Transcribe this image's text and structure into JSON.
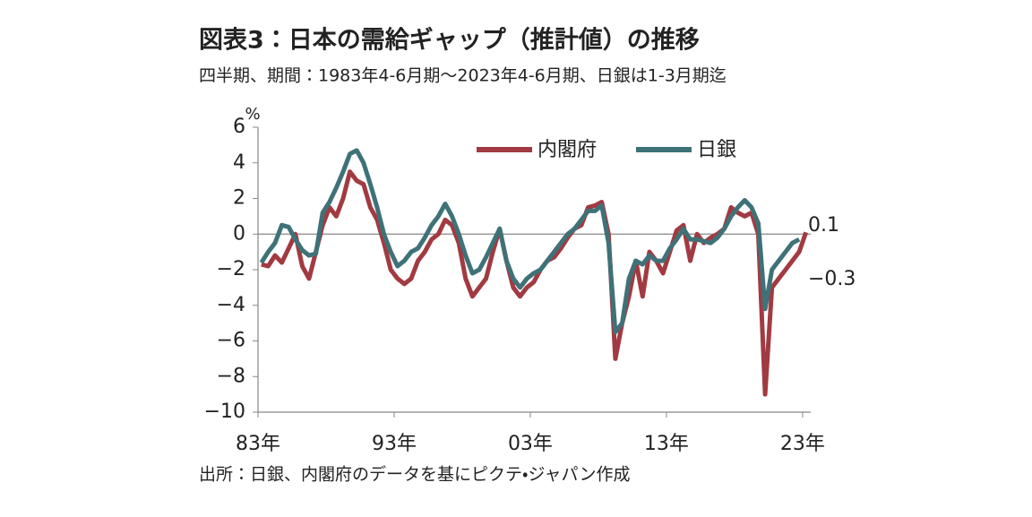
{
  "chart_data": {
    "type": "line",
    "title": "図表3：日本の需給ギャップ（推計値）の推移",
    "subtitle": "四半期、期間：1983年4-6月期～2023年4-6月期、日銀は1-3月期迄",
    "source": "出所：日銀、内閣府のデータを基にピクテ・ジャパン作成",
    "y_unit": "%",
    "x": [
      1983.25,
      1983.75,
      1984.25,
      1984.75,
      1985.25,
      1985.75,
      1986.25,
      1986.75,
      1987.25,
      1987.75,
      1988.25,
      1988.75,
      1989.25,
      1989.75,
      1990.25,
      1990.75,
      1991.25,
      1991.75,
      1992.25,
      1992.75,
      1993.25,
      1993.75,
      1994.25,
      1994.75,
      1995.25,
      1995.75,
      1996.25,
      1996.75,
      1997.25,
      1997.75,
      1998.25,
      1998.75,
      1999.25,
      1999.75,
      2000.25,
      2000.75,
      2001.25,
      2001.75,
      2002.25,
      2002.75,
      2003.25,
      2003.75,
      2004.25,
      2004.75,
      2005.25,
      2005.75,
      2006.25,
      2006.75,
      2007.25,
      2007.75,
      2008.25,
      2008.75,
      2009.25,
      2009.75,
      2010.25,
      2010.75,
      2011.25,
      2011.75,
      2012.25,
      2012.75,
      2013.25,
      2013.75,
      2014.25,
      2014.75,
      2015.25,
      2015.75,
      2016.25,
      2016.75,
      2017.25,
      2017.75,
      2018.25,
      2018.75,
      2019.25,
      2019.75,
      2020.25,
      2020.75,
      2021.25,
      2021.75,
      2022.25,
      2022.75,
      2023.25
    ],
    "series": [
      {
        "name": "内閣府",
        "color": "#a23a41",
        "values": [
          -1.7,
          -1.8,
          -1.2,
          -1.6,
          -0.8,
          0.0,
          -1.8,
          -2.5,
          -1.0,
          0.5,
          1.5,
          1.0,
          2.0,
          3.5,
          3.0,
          2.8,
          1.5,
          0.8,
          -0.5,
          -2.0,
          -2.5,
          -2.8,
          -2.5,
          -1.5,
          -1.0,
          -0.3,
          0.0,
          0.8,
          0.5,
          -0.5,
          -2.5,
          -3.5,
          -3.0,
          -2.5,
          -1.0,
          0.3,
          -1.5,
          -3.0,
          -3.5,
          -3.0,
          -2.7,
          -2.0,
          -1.5,
          -1.3,
          -0.8,
          -0.2,
          0.3,
          0.5,
          1.5,
          1.6,
          1.8,
          0.0,
          -7.0,
          -5.0,
          -3.5,
          -1.5,
          -3.5,
          -1.0,
          -1.5,
          -2.2,
          -1.0,
          0.2,
          0.5,
          -1.5,
          0.0,
          -0.5,
          -0.2,
          0.0,
          0.3,
          1.5,
          1.2,
          1.0,
          1.2,
          0.0,
          -9.0,
          -3.0,
          -2.5,
          -2.0,
          -1.5,
          -1.0,
          0.1
        ]
      },
      {
        "name": "日銀",
        "color": "#3e7278",
        "values": [
          -1.6,
          -1.0,
          -0.5,
          0.5,
          0.4,
          -0.3,
          -0.9,
          -1.2,
          -1.1,
          1.2,
          1.8,
          2.6,
          3.5,
          4.5,
          4.7,
          4.0,
          2.8,
          1.5,
          0.0,
          -1.0,
          -1.8,
          -1.5,
          -1.0,
          -0.8,
          -0.2,
          0.5,
          1.0,
          1.7,
          1.0,
          0.0,
          -1.2,
          -2.2,
          -2.0,
          -1.3,
          -0.5,
          0.3,
          -1.5,
          -2.5,
          -3.0,
          -2.5,
          -2.2,
          -2.0,
          -1.5,
          -1.0,
          -0.5,
          0.0,
          0.3,
          0.8,
          1.3,
          1.3,
          1.6,
          -0.5,
          -5.5,
          -5.0,
          -2.5,
          -1.5,
          -1.7,
          -1.2,
          -1.5,
          -1.5,
          -0.8,
          -0.3,
          0.3,
          -0.3,
          -0.3,
          -0.4,
          -0.5,
          -0.2,
          0.3,
          1.0,
          1.5,
          1.9,
          1.5,
          0.6,
          -4.2,
          -2.0,
          -1.5,
          -1.0,
          -0.5,
          -0.3,
          null
        ]
      }
    ],
    "annotations": [
      {
        "text": "0.1",
        "value": 0.1
      },
      {
        "text": "−0.3",
        "value": -0.3
      }
    ],
    "xlim": [
      1983,
      2023.6
    ],
    "xticks": [
      {
        "value": 1983,
        "label": "83年"
      },
      {
        "value": 1993,
        "label": "93年"
      },
      {
        "value": 2003,
        "label": "03年"
      },
      {
        "value": 2013,
        "label": "13年"
      },
      {
        "value": 2023,
        "label": "23年"
      }
    ],
    "ylim": [
      -10,
      6
    ],
    "yticks": [
      {
        "value": -10,
        "label": "−10"
      },
      {
        "value": -8,
        "label": "−8"
      },
      {
        "value": -6,
        "label": "−6"
      },
      {
        "value": -4,
        "label": "−4"
      },
      {
        "value": -2,
        "label": "−2"
      },
      0,
      2,
      4,
      6
    ],
    "grid": false,
    "legend": "top"
  }
}
